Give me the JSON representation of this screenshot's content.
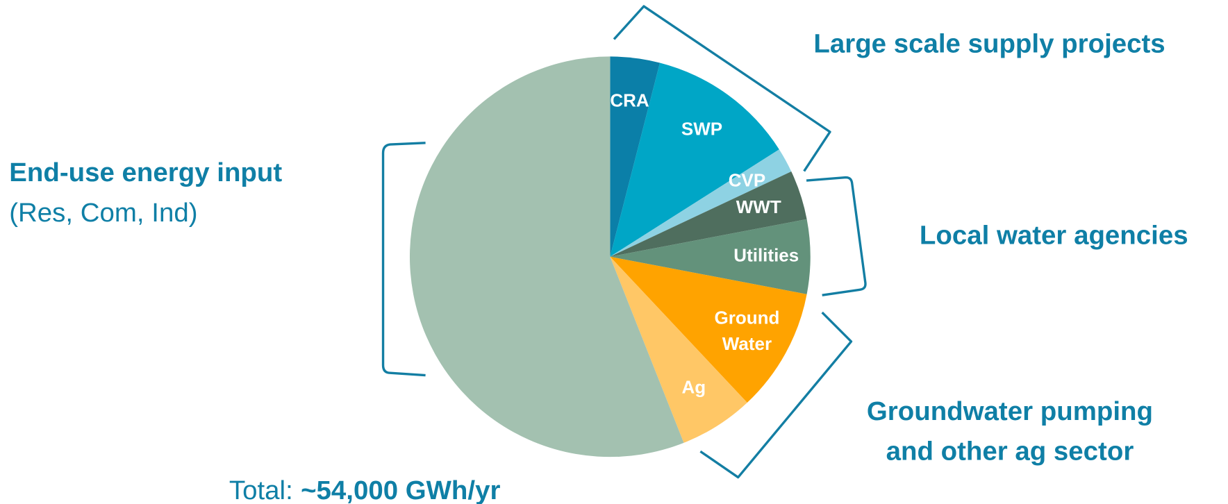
{
  "chart_data": {
    "type": "pie",
    "categories": [
      "CRA",
      "SWP",
      "CVP",
      "WWT",
      "Utilities",
      "Ground Water",
      "Ag",
      null
    ],
    "values": [
      4,
      12,
      2,
      4,
      6,
      10,
      6,
      56
    ],
    "colors": [
      "#0b7fa8",
      "#00a6c6",
      "#8ed2e3",
      "#4f6e5e",
      "#63927b",
      "#ffa300",
      "#ffc766",
      "#a3c1b0"
    ],
    "start_angle": 0,
    "direction": "clockwise",
    "annotations": {
      "large_scale": "Large scale supply projects",
      "end_use": {
        "title": "End-use energy input",
        "subtitle": "(Res, Com, Ind)"
      },
      "local": "Local water agencies",
      "groundwater": [
        "Groundwater pumping",
        "and other ag sector"
      ],
      "total": {
        "prefix": "Total:",
        "value": "~54,000 GWh/yr"
      }
    }
  }
}
